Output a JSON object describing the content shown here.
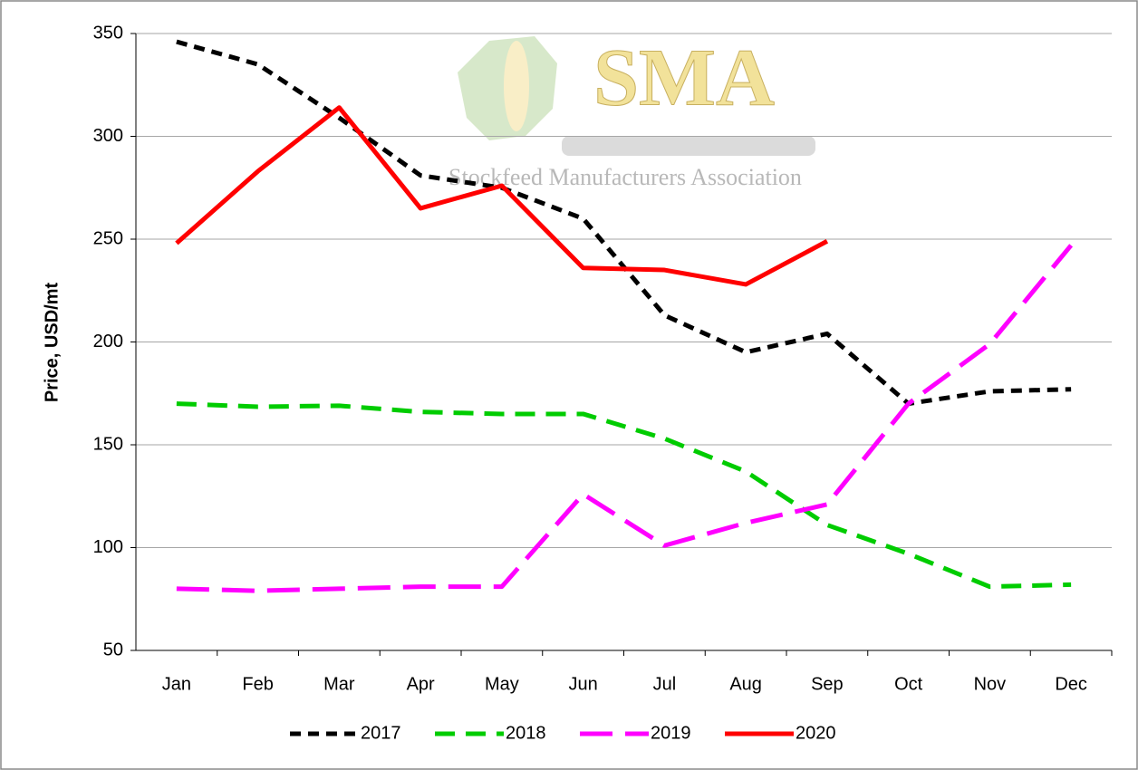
{
  "chart_data": {
    "type": "line",
    "y_label": "Price, USD/mt",
    "watermark": {
      "title": "SMA",
      "subtitle": "Stockfeed Manufacturers Association"
    },
    "categories": [
      "Jan",
      "Feb",
      "Mar",
      "Apr",
      "May",
      "Jun",
      "Jul",
      "Aug",
      "Sep",
      "Oct",
      "Nov",
      "Dec"
    ],
    "series": [
      {
        "name": "2017",
        "color": "#000000",
        "style": "short-dash",
        "values": [
          346,
          335,
          309,
          281,
          275,
          260,
          213,
          195,
          204,
          170,
          176,
          177
        ]
      },
      {
        "name": "2018",
        "color": "#00cc00",
        "style": "dash",
        "values": [
          170,
          168.5,
          169,
          166,
          165,
          165,
          153,
          137,
          111,
          97,
          81,
          82
        ]
      },
      {
        "name": "2019",
        "color": "#ff00ff",
        "style": "long-dash",
        "values": [
          80,
          79,
          80,
          81,
          81,
          126,
          101,
          112,
          121,
          170,
          199,
          247
        ]
      },
      {
        "name": "2020",
        "color": "#ff0000",
        "style": "solid",
        "values": [
          248,
          283,
          314,
          265,
          276,
          236,
          235,
          228,
          249,
          null,
          null,
          null
        ]
      }
    ],
    "ylim": [
      50,
      350
    ],
    "yticks": [
      50,
      100,
      150,
      200,
      250,
      300,
      350
    ],
    "grid": true,
    "legend": "bottom"
  }
}
